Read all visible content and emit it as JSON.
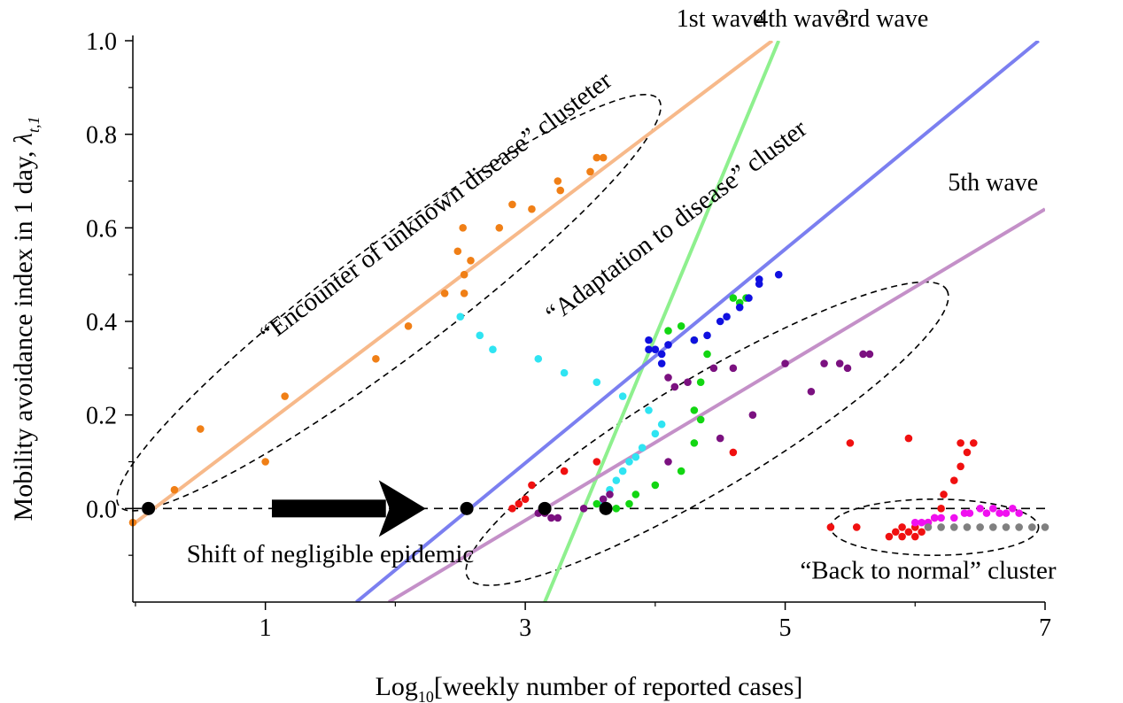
{
  "chart_data": {
    "type": "scatter",
    "xlabel": {
      "prefix": "Log",
      "sub": "10",
      "suffix": "[weekly number of reported cases]"
    },
    "ylabel": {
      "text": "Mobility avoidance index in 1 day, ",
      "symbol": "λ",
      "sub": "t,1"
    },
    "xlim": [
      -0.02,
      7
    ],
    "ylim": [
      -0.2,
      1.0
    ],
    "xticks": [
      1,
      3,
      5,
      7
    ],
    "xtick_labels": [
      "1",
      "3",
      "5",
      "7"
    ],
    "yticks": [
      0.0,
      0.2,
      0.4,
      0.6,
      0.8,
      1.0
    ],
    "ytick_labels": [
      "0.0",
      "0.2",
      "0.4",
      "0.6",
      "0.8",
      "1.0"
    ],
    "grid": false,
    "zero_line": true,
    "fit_lines": [
      {
        "name": "1st wave",
        "color": "#f7b98a",
        "x": [
          0.0,
          4.9
        ],
        "y": [
          -0.03,
          1.0
        ]
      },
      {
        "name": "4th wave",
        "color": "#8ef08e",
        "x": [
          3.15,
          4.95
        ],
        "y": [
          -0.2,
          1.0
        ]
      },
      {
        "name": "3rd wave",
        "color": "#7b7ff0",
        "x": [
          1.7,
          6.95
        ],
        "y": [
          -0.2,
          1.0
        ]
      },
      {
        "name": "5th wave",
        "color": "#c490c8",
        "x": [
          1.95,
          7.0
        ],
        "y": [
          -0.2,
          0.64
        ]
      }
    ],
    "series": [
      {
        "color": "#f07f16",
        "points": [
          [
            -0.02,
            -0.03
          ],
          [
            0.3,
            0.04
          ],
          [
            0.5,
            0.17
          ],
          [
            1.0,
            0.1
          ],
          [
            1.15,
            0.24
          ],
          [
            1.85,
            0.32
          ],
          [
            2.1,
            0.39
          ],
          [
            2.38,
            0.46
          ],
          [
            2.48,
            0.55
          ],
          [
            2.52,
            0.6
          ],
          [
            2.53,
            0.5
          ],
          [
            2.53,
            0.46
          ],
          [
            2.58,
            0.53
          ],
          [
            2.8,
            0.6
          ],
          [
            2.9,
            0.65
          ],
          [
            3.05,
            0.64
          ],
          [
            3.25,
            0.7
          ],
          [
            3.27,
            0.68
          ],
          [
            3.5,
            0.72
          ],
          [
            3.55,
            0.75
          ],
          [
            3.6,
            0.75
          ]
        ]
      },
      {
        "color": "#2fe4f2",
        "points": [
          [
            2.5,
            0.41
          ],
          [
            2.65,
            0.37
          ],
          [
            2.75,
            0.34
          ],
          [
            3.1,
            0.32
          ],
          [
            3.3,
            0.29
          ],
          [
            3.55,
            0.27
          ],
          [
            3.75,
            0.24
          ],
          [
            3.95,
            0.21
          ],
          [
            4.05,
            0.18
          ],
          [
            4.0,
            0.16
          ],
          [
            3.9,
            0.13
          ],
          [
            3.85,
            0.11
          ],
          [
            3.8,
            0.1
          ],
          [
            3.75,
            0.08
          ],
          [
            3.7,
            0.06
          ],
          [
            3.65,
            0.04
          ],
          [
            3.6,
            0.02
          ],
          [
            3.6,
            0.01
          ]
        ]
      },
      {
        "color": "#12d612",
        "points": [
          [
            3.55,
            0.01
          ],
          [
            3.7,
            0.0
          ],
          [
            3.8,
            0.01
          ],
          [
            3.85,
            0.03
          ],
          [
            4.0,
            0.05
          ],
          [
            4.2,
            0.08
          ],
          [
            4.3,
            0.14
          ],
          [
            4.35,
            0.19
          ],
          [
            4.3,
            0.21
          ],
          [
            4.35,
            0.27
          ],
          [
            4.4,
            0.33
          ],
          [
            4.3,
            0.36
          ],
          [
            4.1,
            0.38
          ],
          [
            4.2,
            0.39
          ],
          [
            4.6,
            0.45
          ],
          [
            4.65,
            0.44
          ],
          [
            4.7,
            0.45
          ]
        ]
      },
      {
        "color": "#1010e0",
        "points": [
          [
            3.95,
            0.36
          ],
          [
            3.95,
            0.34
          ],
          [
            4.05,
            0.33
          ],
          [
            4.0,
            0.34
          ],
          [
            4.1,
            0.35
          ],
          [
            4.05,
            0.31
          ],
          [
            4.3,
            0.36
          ],
          [
            4.4,
            0.37
          ],
          [
            4.5,
            0.4
          ],
          [
            4.55,
            0.41
          ],
          [
            4.65,
            0.43
          ],
          [
            4.72,
            0.45
          ],
          [
            4.8,
            0.48
          ],
          [
            4.8,
            0.49
          ],
          [
            4.95,
            0.5
          ]
        ]
      },
      {
        "color": "#7b1180",
        "points": [
          [
            3.1,
            -0.01
          ],
          [
            3.15,
            -0.01
          ],
          [
            3.2,
            -0.02
          ],
          [
            3.25,
            -0.02
          ],
          [
            3.45,
            0.0
          ],
          [
            3.6,
            0.02
          ],
          [
            3.65,
            0.03
          ],
          [
            4.1,
            0.1
          ],
          [
            4.1,
            0.28
          ],
          [
            4.15,
            0.26
          ],
          [
            4.25,
            0.27
          ],
          [
            4.45,
            0.3
          ],
          [
            4.5,
            0.15
          ],
          [
            4.6,
            0.3
          ],
          [
            4.75,
            0.2
          ],
          [
            5.0,
            0.31
          ],
          [
            5.2,
            0.25
          ],
          [
            5.3,
            0.31
          ],
          [
            5.42,
            0.31
          ],
          [
            5.48,
            0.3
          ],
          [
            5.6,
            0.33
          ],
          [
            5.65,
            0.33
          ]
        ]
      },
      {
        "color": "#f01010",
        "points": [
          [
            2.9,
            0.0
          ],
          [
            2.95,
            0.01
          ],
          [
            3.0,
            0.02
          ],
          [
            3.05,
            0.05
          ],
          [
            3.3,
            0.08
          ],
          [
            3.55,
            0.1
          ],
          [
            4.6,
            0.12
          ],
          [
            5.5,
            0.14
          ],
          [
            5.35,
            -0.04
          ],
          [
            5.55,
            -0.04
          ],
          [
            5.8,
            -0.06
          ],
          [
            5.85,
            -0.05
          ],
          [
            5.9,
            -0.06
          ],
          [
            5.95,
            -0.05
          ],
          [
            6.0,
            -0.06
          ],
          [
            6.05,
            -0.05
          ],
          [
            5.9,
            -0.04
          ],
          [
            6.0,
            -0.04
          ],
          [
            6.1,
            -0.03
          ],
          [
            6.15,
            -0.02
          ],
          [
            6.2,
            0.0
          ],
          [
            6.22,
            0.03
          ],
          [
            6.3,
            0.06
          ],
          [
            6.35,
            0.09
          ],
          [
            6.4,
            0.12
          ],
          [
            6.45,
            0.14
          ],
          [
            6.35,
            0.14
          ],
          [
            5.95,
            0.15
          ]
        ]
      },
      {
        "color": "#f010f0",
        "points": [
          [
            6.0,
            -0.03
          ],
          [
            6.05,
            -0.03
          ],
          [
            6.1,
            -0.03
          ],
          [
            6.15,
            -0.02
          ],
          [
            6.2,
            -0.02
          ],
          [
            6.3,
            -0.02
          ],
          [
            6.38,
            -0.01
          ],
          [
            6.42,
            -0.01
          ],
          [
            6.5,
            0.0
          ],
          [
            6.55,
            -0.01
          ],
          [
            6.6,
            0.0
          ],
          [
            6.65,
            -0.01
          ],
          [
            6.7,
            -0.01
          ],
          [
            6.75,
            0.0
          ],
          [
            6.8,
            -0.01
          ]
        ]
      },
      {
        "color": "#808080",
        "points": [
          [
            6.1,
            -0.04
          ],
          [
            6.2,
            -0.04
          ],
          [
            6.3,
            -0.04
          ],
          [
            6.4,
            -0.04
          ],
          [
            6.5,
            -0.04
          ],
          [
            6.6,
            -0.04
          ],
          [
            6.7,
            -0.04
          ],
          [
            6.8,
            -0.04
          ],
          [
            6.9,
            -0.04
          ],
          [
            7.0,
            -0.04
          ]
        ]
      }
    ],
    "threshold_points": [
      [
        0.1,
        0.0
      ],
      [
        2.55,
        0.0
      ],
      [
        3.15,
        0.0
      ],
      [
        3.62,
        0.0
      ]
    ],
    "wave_labels": [
      {
        "text": "1st wave",
        "x": 4.5,
        "y": 1.03
      },
      {
        "text": "4th wave",
        "x": 5.12,
        "y": 1.03
      },
      {
        "text": "3rd wave",
        "x": 5.75,
        "y": 1.03
      },
      {
        "text": "5th wave",
        "x": 6.6,
        "y": 0.68
      }
    ],
    "annotations": [
      {
        "text": "“Encounter of unknown disease” clusteter",
        "x": 2.35,
        "y": 0.63,
        "angle": -37
      },
      {
        "text": "“Adaptation to disease” cluster",
        "x": 4.2,
        "y": 0.6,
        "angle": -37
      },
      {
        "text": "Shift of negligible epidemic",
        "x": 1.5,
        "y": -0.115
      },
      {
        "text": "“Back to normal” cluster",
        "x": 6.1,
        "y": -0.15
      }
    ],
    "clusters": [
      {
        "cx": 1.95,
        "cy": 0.44,
        "rx": 2.6,
        "ry": 0.12,
        "angle": -37
      },
      {
        "cx": 4.4,
        "cy": 0.16,
        "rx": 2.15,
        "ry": 0.12,
        "angle": -31
      },
      {
        "cx": 6.15,
        "cy": -0.04,
        "rx": 0.8,
        "ry": 0.06,
        "angle": 0
      }
    ],
    "arrow": {
      "x1": 1.05,
      "x2": 2.2,
      "y": 0.0
    }
  }
}
